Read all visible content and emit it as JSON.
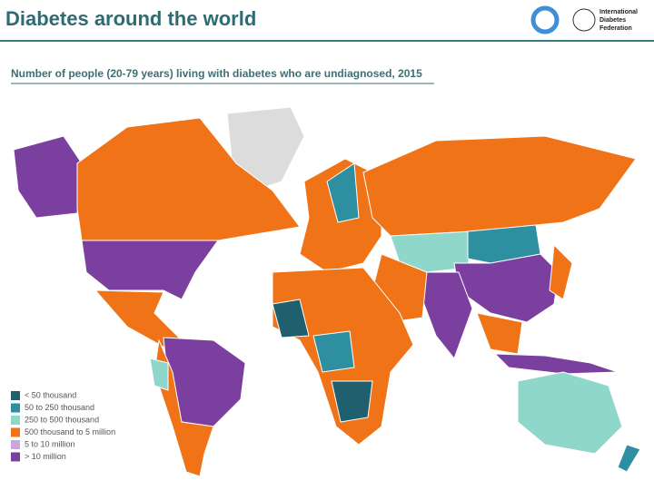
{
  "header": {
    "title": "Diabetes around the world",
    "logo_text": [
      "International",
      "Diabetes",
      "Federation"
    ]
  },
  "map": {
    "title": "Number of people (20-79 years) living with diabetes who are undiagnosed, 2015",
    "legend": [
      {
        "label": "< 50 thousand",
        "color": "#1f5f6e"
      },
      {
        "label": "50 to 250 thousand",
        "color": "#2e8fa0"
      },
      {
        "label": "250 to 500 thousand",
        "color": "#8fd6cb"
      },
      {
        "label": "500 thousand to 5 million",
        "color": "#f07318"
      },
      {
        "label": "5 to 10 million",
        "color": "#c9a9d9"
      },
      {
        "label": "> 10 million",
        "color": "#7b3fa0"
      }
    ]
  }
}
